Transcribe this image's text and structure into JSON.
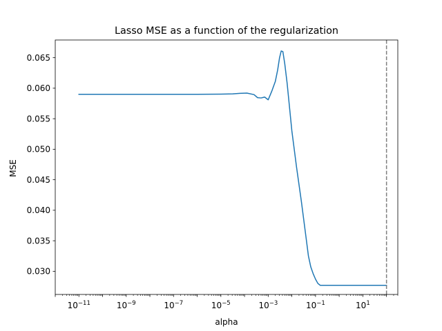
{
  "chart_data": {
    "type": "line",
    "title": "Lasso MSE as a function of the regularization",
    "xlabel": "alpha",
    "ylabel": "MSE",
    "xscale": "log",
    "xlim": [
      1e-12,
      300
    ],
    "ylim": [
      0.0262,
      0.0679
    ],
    "grid": false,
    "x_ticks": [
      {
        "exp": -11,
        "base": "10",
        "sup": "−11"
      },
      {
        "exp": -9,
        "base": "10",
        "sup": "−9"
      },
      {
        "exp": -7,
        "base": "10",
        "sup": "−7"
      },
      {
        "exp": -5,
        "base": "10",
        "sup": "−5"
      },
      {
        "exp": -3,
        "base": "10",
        "sup": "−3"
      },
      {
        "exp": -1,
        "base": "10",
        "sup": "−1"
      },
      {
        "exp": 1,
        "base": "10",
        "sup": "1"
      }
    ],
    "y_ticks": [
      "0.030",
      "0.035",
      "0.040",
      "0.045",
      "0.050",
      "0.055",
      "0.060",
      "0.065"
    ],
    "series": [
      {
        "color": "#1f77b4",
        "log10_alpha": [
          -11.0,
          -8.0,
          -6.0,
          -5.0,
          -4.5,
          -4.2,
          -3.9,
          -3.6,
          -3.45,
          -3.3,
          -3.15,
          -3.0,
          -2.85,
          -2.7,
          -2.6,
          -2.52,
          -2.45,
          -2.38,
          -2.3,
          -2.2,
          -2.0,
          -1.8,
          -1.6,
          -1.4,
          -1.3,
          -1.2,
          -1.1,
          -1.0,
          -0.9,
          -0.8,
          -0.5,
          0.0,
          1.0,
          2.0
        ],
        "mse": [
          0.059,
          0.059,
          0.059,
          0.05903,
          0.05907,
          0.05915,
          0.0592,
          0.05895,
          0.05845,
          0.0584,
          0.05855,
          0.0581,
          0.0595,
          0.0611,
          0.063,
          0.065,
          0.0661,
          0.066,
          0.064,
          0.0608,
          0.053,
          0.047,
          0.0415,
          0.0355,
          0.0325,
          0.0307,
          0.0296,
          0.0287,
          0.028,
          0.0277,
          0.0277,
          0.0277,
          0.0277,
          0.0277
        ]
      }
    ],
    "vline": {
      "log10_alpha": 2.0,
      "style": "dashed",
      "color": "#7f7f7f"
    }
  }
}
